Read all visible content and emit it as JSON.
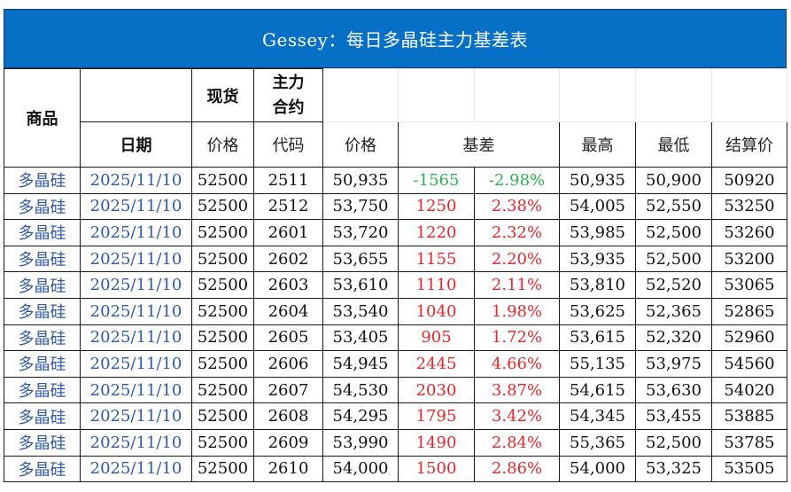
{
  "title": "Gessey：每日多晶硅主力基差表",
  "header": {
    "product": "商品",
    "spot": "现货",
    "main_contract": "主力\n合约",
    "date": "日期",
    "spot_price": "价格",
    "code": "代码",
    "price": "价格",
    "basis": "基差",
    "high": "最高",
    "low": "最低",
    "settle": "结算价"
  },
  "colors": {
    "title_bg": "#0670c6",
    "link_blue": "#2f5aa8",
    "positive": "#e8262a",
    "negative": "#2bb24c"
  },
  "rows": [
    {
      "product": "多晶硅",
      "date": "2025/11/10",
      "spot": "52500",
      "code": "2511",
      "price": "50,935",
      "basis": "-1565",
      "basis_pct": "-2.98%",
      "high": "50,935",
      "low": "50,900",
      "settle": "50920",
      "sign": "neg"
    },
    {
      "product": "多晶硅",
      "date": "2025/11/10",
      "spot": "52500",
      "code": "2512",
      "price": "53,750",
      "basis": "1250",
      "basis_pct": "2.38%",
      "high": "54,005",
      "low": "52,550",
      "settle": "53250",
      "sign": "pos"
    },
    {
      "product": "多晶硅",
      "date": "2025/11/10",
      "spot": "52500",
      "code": "2601",
      "price": "53,720",
      "basis": "1220",
      "basis_pct": "2.32%",
      "high": "53,985",
      "low": "52,500",
      "settle": "53260",
      "sign": "pos"
    },
    {
      "product": "多晶硅",
      "date": "2025/11/10",
      "spot": "52500",
      "code": "2602",
      "price": "53,655",
      "basis": "1155",
      "basis_pct": "2.20%",
      "high": "53,935",
      "low": "52,500",
      "settle": "53200",
      "sign": "pos"
    },
    {
      "product": "多晶硅",
      "date": "2025/11/10",
      "spot": "52500",
      "code": "2603",
      "price": "53,610",
      "basis": "1110",
      "basis_pct": "2.11%",
      "high": "53,810",
      "low": "52,520",
      "settle": "53065",
      "sign": "pos"
    },
    {
      "product": "多晶硅",
      "date": "2025/11/10",
      "spot": "52500",
      "code": "2604",
      "price": "53,540",
      "basis": "1040",
      "basis_pct": "1.98%",
      "high": "53,625",
      "low": "52,365",
      "settle": "52865",
      "sign": "pos"
    },
    {
      "product": "多晶硅",
      "date": "2025/11/10",
      "spot": "52500",
      "code": "2605",
      "price": "53,405",
      "basis": "905",
      "basis_pct": "1.72%",
      "high": "53,615",
      "low": "52,320",
      "settle": "52960",
      "sign": "pos"
    },
    {
      "product": "多晶硅",
      "date": "2025/11/10",
      "spot": "52500",
      "code": "2606",
      "price": "54,945",
      "basis": "2445",
      "basis_pct": "4.66%",
      "high": "55,135",
      "low": "53,975",
      "settle": "54560",
      "sign": "pos"
    },
    {
      "product": "多晶硅",
      "date": "2025/11/10",
      "spot": "52500",
      "code": "2607",
      "price": "54,530",
      "basis": "2030",
      "basis_pct": "3.87%",
      "high": "54,615",
      "low": "53,630",
      "settle": "54020",
      "sign": "pos"
    },
    {
      "product": "多晶硅",
      "date": "2025/11/10",
      "spot": "52500",
      "code": "2608",
      "price": "54,295",
      "basis": "1795",
      "basis_pct": "3.42%",
      "high": "54,345",
      "low": "53,455",
      "settle": "53885",
      "sign": "pos"
    },
    {
      "product": "多晶硅",
      "date": "2025/11/10",
      "spot": "52500",
      "code": "2609",
      "price": "53,990",
      "basis": "1490",
      "basis_pct": "2.84%",
      "high": "55,365",
      "low": "52,500",
      "settle": "53785",
      "sign": "pos"
    },
    {
      "product": "多晶硅",
      "date": "2025/11/10",
      "spot": "52500",
      "code": "2610",
      "price": "54,000",
      "basis": "1500",
      "basis_pct": "2.86%",
      "high": "54,000",
      "low": "53,325",
      "settle": "53505",
      "sign": "pos"
    }
  ]
}
